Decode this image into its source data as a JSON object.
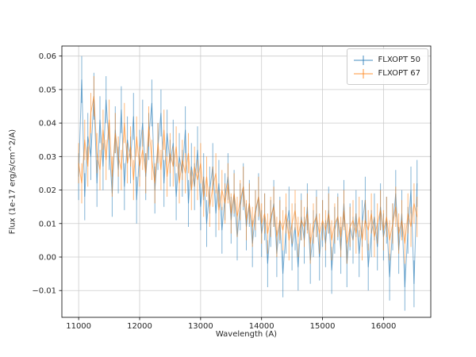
{
  "chart_data": {
    "type": "line",
    "title": "",
    "xlabel": "Wavelength (A)",
    "ylabel": "Flux (1e-17 erg/s/cm^2/A)",
    "xlim": [
      10725,
      16775
    ],
    "ylim": [
      -0.018,
      0.063
    ],
    "xticks": [
      11000,
      12000,
      13000,
      14000,
      15000,
      16000
    ],
    "yticks": [
      -0.01,
      0.0,
      0.01,
      0.02,
      0.03,
      0.04,
      0.05,
      0.06
    ],
    "grid": true,
    "legend_position": "upper right",
    "x_start": 11000,
    "x_step": 50,
    "series": [
      {
        "name": "FLXOPT 50",
        "color": "#1f77b4",
        "alpha": 0.55,
        "yerr": 0.007,
        "values": [
          0.024,
          0.053,
          0.018,
          0.036,
          0.03,
          0.048,
          0.022,
          0.041,
          0.027,
          0.047,
          0.033,
          0.019,
          0.038,
          0.026,
          0.044,
          0.021,
          0.035,
          0.029,
          0.042,
          0.017,
          0.031,
          0.04,
          0.024,
          0.036,
          0.046,
          0.02,
          0.033,
          0.043,
          0.022,
          0.037,
          0.028,
          0.034,
          0.018,
          0.03,
          0.025,
          0.038,
          0.016,
          0.027,
          0.021,
          0.032,
          0.015,
          0.024,
          0.01,
          0.02,
          0.027,
          0.013,
          0.022,
          0.008,
          0.018,
          0.024,
          0.011,
          0.019,
          0.006,
          0.015,
          0.021,
          0.009,
          0.016,
          0.004,
          0.013,
          0.018,
          0.007,
          0.012,
          -0.002,
          0.01,
          0.016,
          0.001,
          0.011,
          -0.005,
          0.008,
          0.014,
          0.003,
          0.009,
          -0.003,
          0.012,
          0.005,
          0.015,
          -0.001,
          0.007,
          0.013,
          0.0,
          0.01,
          0.004,
          0.014,
          -0.004,
          0.008,
          0.012,
          0.002,
          0.016,
          -0.002,
          0.009,
          0.005,
          0.013,
          0.001,
          0.01,
          0.017,
          -0.003,
          0.007,
          0.012,
          0.003,
          0.015,
          0.006,
          0.011,
          -0.006,
          0.009,
          0.019,
          0.002,
          0.013,
          -0.009,
          0.008,
          0.02,
          -0.008,
          0.022
        ]
      },
      {
        "name": "FLXOPT 67",
        "color": "#ff7f0e",
        "alpha": 0.55,
        "yerr": 0.006,
        "values": [
          0.028,
          0.022,
          0.035,
          0.027,
          0.043,
          0.048,
          0.031,
          0.026,
          0.038,
          0.029,
          0.041,
          0.024,
          0.037,
          0.03,
          0.026,
          0.04,
          0.028,
          0.033,
          0.023,
          0.036,
          0.027,
          0.032,
          0.025,
          0.039,
          0.029,
          0.022,
          0.034,
          0.026,
          0.038,
          0.024,
          0.031,
          0.027,
          0.033,
          0.022,
          0.029,
          0.025,
          0.031,
          0.02,
          0.027,
          0.023,
          0.028,
          0.018,
          0.024,
          0.015,
          0.021,
          0.025,
          0.014,
          0.02,
          0.016,
          0.022,
          0.013,
          0.019,
          0.012,
          0.017,
          0.021,
          0.011,
          0.016,
          0.009,
          0.014,
          0.018,
          0.01,
          0.013,
          0.007,
          0.012,
          0.015,
          0.006,
          0.011,
          0.008,
          0.013,
          0.005,
          0.01,
          0.014,
          0.006,
          0.011,
          0.009,
          0.013,
          0.004,
          0.01,
          0.012,
          0.007,
          0.011,
          0.008,
          0.013,
          0.005,
          0.01,
          0.012,
          0.006,
          0.014,
          0.004,
          0.009,
          0.011,
          0.007,
          0.012,
          0.005,
          0.011,
          0.008,
          0.013,
          0.006,
          0.01,
          0.014,
          0.008,
          0.012,
          0.005,
          0.01,
          0.015,
          0.007,
          0.011,
          0.004,
          0.013,
          0.009,
          0.016,
          0.012
        ]
      }
    ]
  }
}
